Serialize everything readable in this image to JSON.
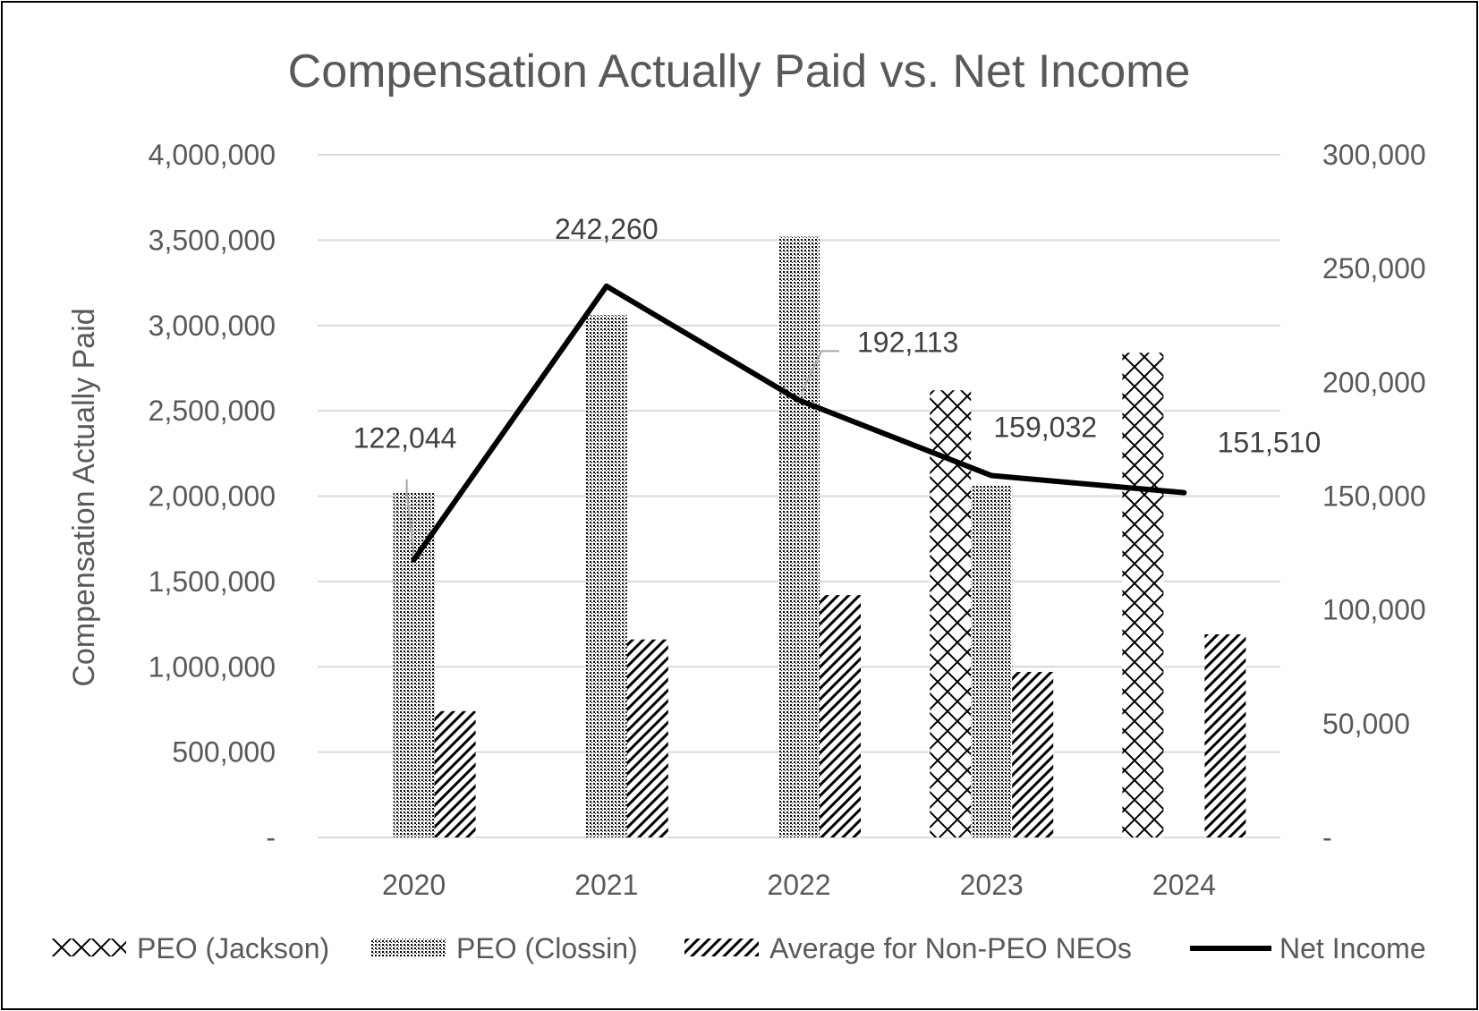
{
  "chart_data": {
    "type": "bar",
    "title": "Compensation Actually Paid vs. Net Income",
    "categories": [
      "2020",
      "2021",
      "2022",
      "2023",
      "2024"
    ],
    "ylabel": "Compensation Actually Paid",
    "y2label": "",
    "ylim": [
      0,
      4000000
    ],
    "y2lim": [
      0,
      300000
    ],
    "yticks": [
      "-",
      "500,000",
      "1,000,000",
      "1,500,000",
      "2,000,000",
      "2,500,000",
      "3,000,000",
      "3,500,000",
      "4,000,000"
    ],
    "y2ticks": [
      "-",
      "50,000",
      "100,000",
      "150,000",
      "200,000",
      "250,000",
      "300,000"
    ],
    "grid": true,
    "legend_position": "bottom",
    "series": [
      {
        "name": "PEO (Jackson)",
        "type": "bar",
        "pattern": "crosshatch",
        "values": [
          null,
          null,
          null,
          2620000,
          2840000
        ]
      },
      {
        "name": "PEO (Clossin)",
        "type": "bar",
        "pattern": "dots",
        "values": [
          2020000,
          3060000,
          3520000,
          2060000,
          null
        ]
      },
      {
        "name": "Average for Non-PEO NEOs",
        "type": "bar",
        "pattern": "diagonal",
        "values": [
          740000,
          1160000,
          1420000,
          970000,
          1190000
        ]
      },
      {
        "name": "Net Income",
        "type": "line",
        "axis": "secondary",
        "values": [
          122044,
          242260,
          192113,
          159032,
          151510
        ],
        "labels": [
          "122,044",
          "242,260",
          "192,113",
          "159,032",
          "151,510"
        ]
      }
    ]
  }
}
